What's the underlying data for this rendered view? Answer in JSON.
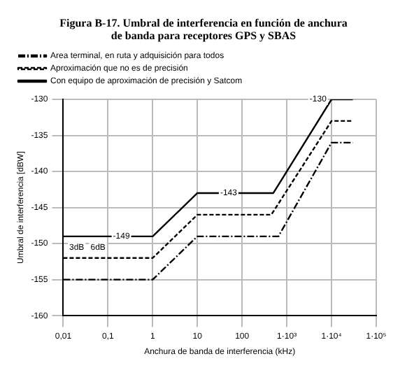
{
  "chart_data": {
    "type": "line",
    "title": "Figura B-17.    Umbral de interferencia en función de anchura de banda para receptores GPS y SBAS",
    "xlabel": "Anchura de banda de interferencia (kHz)",
    "ylabel": "Umbral de interferencia [dBW]",
    "log": "x",
    "grid": true,
    "legend": "top",
    "xlim": [
      0.01,
      100000
    ],
    "ylim": [
      -160,
      -130
    ],
    "xticks": [
      {
        "value": 0.01,
        "label": "0,01"
      },
      {
        "value": 0.1,
        "label": "0,1"
      },
      1,
      10,
      100,
      {
        "value": 1000,
        "label": "1·10³"
      },
      {
        "value": 10000,
        "label": "1·10⁴"
      },
      {
        "value": 100000,
        "label": "1·10⁵"
      }
    ],
    "yticks": [
      -160,
      -155,
      -150,
      -145,
      -140,
      -135,
      -130
    ],
    "series": [
      {
        "name": "Area terminal, en ruta y adquisición para todos",
        "color": "#000000",
        "line_style": "dashdot",
        "x": [
          0.01,
          1,
          10,
          650,
          10000,
          30000
        ],
        "values": [
          -155,
          -155,
          -149,
          -149,
          -136,
          -136
        ]
      },
      {
        "name": "Aproximación que no es de precisión",
        "color": "#000000",
        "line_style": "dashed",
        "x": [
          0.01,
          1,
          10,
          450,
          10000,
          30000
        ],
        "values": [
          -152,
          -152,
          -146,
          -146,
          -133,
          -133
        ]
      },
      {
        "name": "Con equipo de aproximación de precisión y Satcom",
        "color": "#000000",
        "line_style": "solid",
        "x": [
          0.01,
          1,
          10,
          500,
          10000,
          30000
        ],
        "values": [
          -149,
          -149,
          -143,
          -143,
          -130,
          -130
        ]
      }
    ],
    "annotations": [
      {
        "text": "-149",
        "x": 0.2,
        "y": -149
      },
      {
        "text": "-143",
        "x": 50,
        "y": -143
      },
      {
        "text": "-130",
        "x": 5000,
        "y": -130
      },
      {
        "text": "3dB",
        "x": 0.02,
        "y": -150.5
      },
      {
        "text": "6dB",
        "x": 0.06,
        "y": -150.5
      }
    ]
  }
}
